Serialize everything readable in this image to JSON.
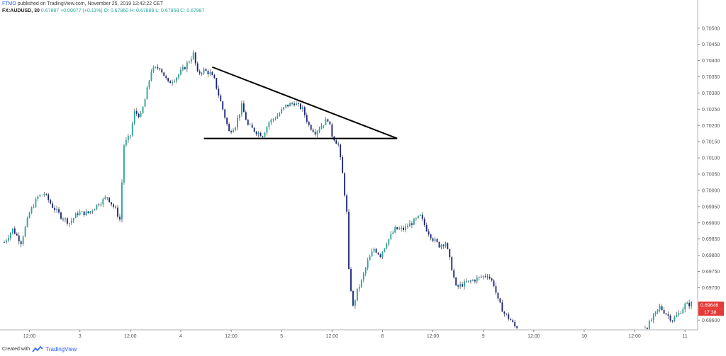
{
  "header": {
    "publisher": "FTMO",
    "published_line": "published on TradingView.com, November 25, 2019 12:42:22 CET",
    "symbol": "FX:AUDUSD, 30",
    "last": "0.67887",
    "change": "+0.00077 (+0.11%)",
    "ohlc_line": "O: 0.67860 H: 0.67889 L: 0.67858 C: 0.67887"
  },
  "footer": {
    "created_with": "Created with",
    "brand": "TradingView"
  },
  "price_tag": {
    "price": "0.69646",
    "countdown": "17:38"
  },
  "colors": {
    "up": "#26a69a",
    "down": "#1a237e",
    "tag": "#e53935",
    "axis": "#555555",
    "grid": "#d6d6d6",
    "trendline": "#000000"
  },
  "chart_data": {
    "type": "candlestick",
    "instrument": "AUDUSD",
    "timeframe": "30",
    "ylim": [
      0.6957,
      0.7053
    ],
    "y_ticks": [
      0.705,
      0.7045,
      0.704,
      0.7035,
      0.703,
      0.7025,
      0.702,
      0.7015,
      0.701,
      0.7005,
      0.7,
      0.6995,
      0.699,
      0.6985,
      0.698,
      0.6975,
      0.697,
      0.6965,
      0.696
    ],
    "y_tick_labels": [
      "0.70500",
      "0.70450",
      "0.70400",
      "0.70350",
      "0.70300",
      "0.70250",
      "0.70200",
      "0.70150",
      "0.70100",
      "0.70050",
      "0.70000",
      "0.69950",
      "0.69900",
      "0.69850",
      "0.69800",
      "0.69750",
      "0.69700",
      "0.69650",
      "0.69600"
    ],
    "xlim": [
      0,
      330
    ],
    "x_ticks": [
      {
        "label": "12:00",
        "bar": 12
      },
      {
        "label": "3",
        "bar": 36
      },
      {
        "label": "12:00",
        "bar": 60
      },
      {
        "label": "4",
        "bar": 84
      },
      {
        "label": "12:00",
        "bar": 108
      },
      {
        "label": "5",
        "bar": 132
      },
      {
        "label": "12:00",
        "bar": 156
      },
      {
        "label": "8",
        "bar": 180
      },
      {
        "label": "12:00",
        "bar": 204
      },
      {
        "label": "9",
        "bar": 228
      },
      {
        "label": "12:00",
        "bar": 252
      },
      {
        "label": "10",
        "bar": 276
      },
      {
        "label": "12:00",
        "bar": 300
      },
      {
        "label": "11",
        "bar": 324
      }
    ],
    "close_path": [
      [
        0,
        0.6984
      ],
      [
        4,
        0.6988
      ],
      [
        8,
        0.6984
      ],
      [
        12,
        0.6993
      ],
      [
        16,
        0.6998
      ],
      [
        19,
        0.6999
      ],
      [
        23,
        0.6995
      ],
      [
        27,
        0.6992
      ],
      [
        31,
        0.699
      ],
      [
        35,
        0.6993
      ],
      [
        40,
        0.6993
      ],
      [
        45,
        0.6996
      ],
      [
        49,
        0.6998
      ],
      [
        53,
        0.6994
      ],
      [
        55,
        0.6991
      ],
      [
        57,
        0.7014
      ],
      [
        60,
        0.7017
      ],
      [
        62,
        0.7024
      ],
      [
        65,
        0.7023
      ],
      [
        67,
        0.7028
      ],
      [
        70,
        0.7037
      ],
      [
        74,
        0.7038
      ],
      [
        78,
        0.7033
      ],
      [
        82,
        0.7035
      ],
      [
        86,
        0.7038
      ],
      [
        90,
        0.7042
      ],
      [
        92,
        0.7036
      ],
      [
        95,
        0.7037
      ],
      [
        98,
        0.7036
      ],
      [
        100,
        0.7034
      ],
      [
        104,
        0.7025
      ],
      [
        107,
        0.7018
      ],
      [
        110,
        0.702
      ],
      [
        113,
        0.7026
      ],
      [
        116,
        0.702
      ],
      [
        120,
        0.7018
      ],
      [
        123,
        0.7017
      ],
      [
        126,
        0.7021
      ],
      [
        130,
        0.7023
      ],
      [
        134,
        0.7026
      ],
      [
        138,
        0.7027
      ],
      [
        142,
        0.7025
      ],
      [
        145,
        0.702
      ],
      [
        148,
        0.7018
      ],
      [
        151,
        0.702
      ],
      [
        154,
        0.7022
      ],
      [
        156,
        0.7017
      ],
      [
        159,
        0.7014
      ],
      [
        161,
        0.7005
      ],
      [
        163,
        0.6993
      ],
      [
        164,
        0.6975
      ],
      [
        166,
        0.6964
      ],
      [
        168,
        0.6969
      ],
      [
        170,
        0.6972
      ],
      [
        173,
        0.6978
      ],
      [
        176,
        0.6982
      ],
      [
        179,
        0.698
      ],
      [
        182,
        0.6984
      ],
      [
        186,
        0.6988
      ],
      [
        190,
        0.6988
      ],
      [
        194,
        0.699
      ],
      [
        198,
        0.6992
      ],
      [
        201,
        0.6988
      ],
      [
        204,
        0.6985
      ],
      [
        207,
        0.6983
      ],
      [
        210,
        0.6984
      ],
      [
        213,
        0.6976
      ],
      [
        215,
        0.697
      ],
      [
        218,
        0.6971
      ],
      [
        222,
        0.6972
      ],
      [
        226,
        0.6973
      ],
      [
        230,
        0.6974
      ],
      [
        233,
        0.6971
      ],
      [
        235,
        0.6966
      ],
      [
        238,
        0.6962
      ],
      [
        241,
        0.696
      ],
      [
        243,
        0.6958
      ],
      [
        306,
        0.6958
      ],
      [
        309,
        0.6961
      ],
      [
        312,
        0.6964
      ],
      [
        315,
        0.6962
      ],
      [
        318,
        0.696
      ],
      [
        321,
        0.6962
      ],
      [
        324,
        0.69646
      ],
      [
        327,
        0.6965
      ]
    ],
    "candles_from_bar": 0,
    "gap_bars": [
      244,
      305
    ],
    "annotations": [
      {
        "type": "trendline",
        "name": "upper-trendline",
        "from": {
          "bar": 99,
          "price": 0.7038
        },
        "to": {
          "bar": 187,
          "price": 0.7016
        }
      },
      {
        "type": "horizontal-segment",
        "name": "support-line",
        "from": {
          "bar": 95,
          "price": 0.7016
        },
        "to": {
          "bar": 187,
          "price": 0.7016
        }
      }
    ]
  }
}
